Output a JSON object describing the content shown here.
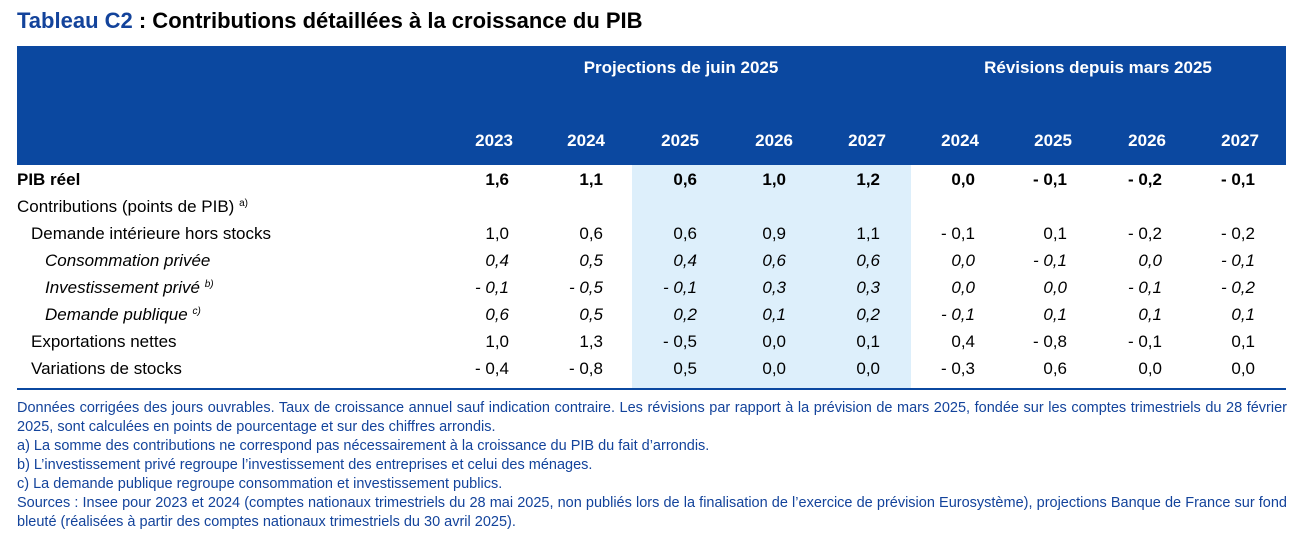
{
  "title": {
    "code": "Tableau C2",
    "text": " : Contributions détaillées à la croissance du PIB"
  },
  "header": {
    "group_projections": "Projections de juin 2025",
    "group_revisions": "Révisions depuis mars 2025",
    "years": [
      "2023",
      "2024",
      "2025",
      "2026",
      "2027",
      "2024",
      "2025",
      "2026",
      "2027"
    ]
  },
  "rows": [
    {
      "label": "PIB réel",
      "note": "",
      "values": [
        "1,6",
        "1,1",
        "0,6",
        "1,0",
        "1,2",
        "0,0",
        "- 0,1",
        "- 0,2",
        "- 0,1"
      ]
    },
    {
      "label": "Contributions (points de PIB)",
      "note": "a)",
      "values": []
    },
    {
      "label": "Demande intérieure hors stocks",
      "note": "",
      "values": [
        "1,0",
        "0,6",
        "0,6",
        "0,9",
        "1,1",
        "- 0,1",
        "0,1",
        "- 0,2",
        "- 0,2"
      ]
    },
    {
      "label": "Consommation privée",
      "note": "",
      "values": [
        "0,4",
        "0,5",
        "0,4",
        "0,6",
        "0,6",
        "0,0",
        "- 0,1",
        "0,0",
        "- 0,1"
      ]
    },
    {
      "label": "Investissement privé",
      "note": "b)",
      "values": [
        "- 0,1",
        "- 0,5",
        "- 0,1",
        "0,3",
        "0,3",
        "0,0",
        "0,0",
        "- 0,1",
        "- 0,2"
      ]
    },
    {
      "label": "Demande publique",
      "note": "c)",
      "values": [
        "0,6",
        "0,5",
        "0,2",
        "0,1",
        "0,2",
        "- 0,1",
        "0,1",
        "0,1",
        "0,1"
      ]
    },
    {
      "label": "Exportations nettes",
      "note": "",
      "values": [
        "1,0",
        "1,3",
        "- 0,5",
        "0,0",
        "0,1",
        "0,4",
        "- 0,8",
        "- 0,1",
        "0,1"
      ]
    },
    {
      "label": "Variations de stocks",
      "note": "",
      "values": [
        "- 0,4",
        "- 0,8",
        "0,5",
        "0,0",
        "0,0",
        "- 0,3",
        "0,6",
        "0,0",
        "0,0"
      ]
    }
  ],
  "notes": {
    "general": "Données corrigées des jours ouvrables. Taux de croissance annuel sauf indication contraire. Les révisions par rapport à la prévision de mars 2025, fondée sur les comptes trimestriels du 28 février 2025, sont calculées en points de pourcentage et sur des chiffres arrondis.",
    "a": "a)  La somme des contributions ne correspond pas nécessairement à la croissance du PIB du fait d’arrondis.",
    "b": "b)  L’investissement privé regroupe l’investissement des entreprises et celui des ménages.",
    "c": "c)  La demande publique regroupe consommation et investissement publics.",
    "sources": "Sources : Insee pour 2023 et 2024 (comptes nationaux trimestriels du 28 mai 2025, non publiés lors de la finalisation de l’exercice de prévision Eurosystème), projections Banque de France sur fond bleuté (réalisées à partir des comptes nationaux trimestriels du 30 avril 2025)."
  }
}
